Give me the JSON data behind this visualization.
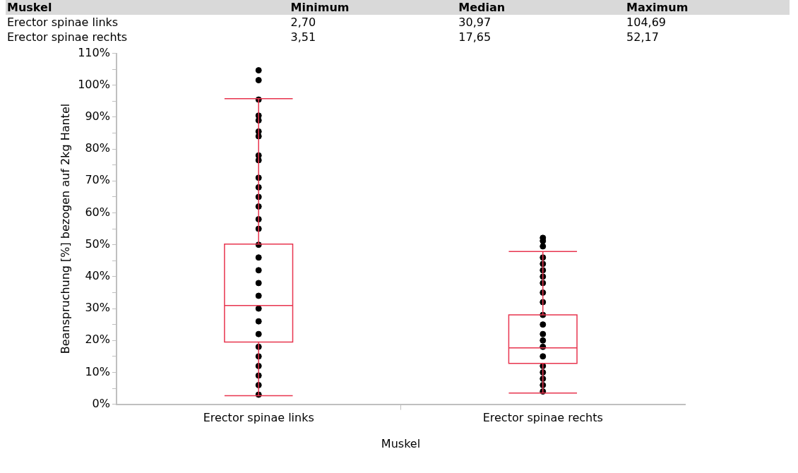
{
  "chart_data": {
    "type": "box",
    "xlabel": "Muskel",
    "ylabel": "Beanspruchung [%] bezogen auf 2kg Hantel",
    "categories": [
      "Erector spinae links",
      "Erector spinae rechts"
    ],
    "color": "#e8344e",
    "boxes": [
      {
        "low": 2.7,
        "q1": 19.5,
        "median": 30.97,
        "q3": 50.2,
        "high": 95.8,
        "outliers": [
          101.6,
          104.69
        ]
      },
      {
        "low": 3.51,
        "q1": 12.8,
        "median": 17.65,
        "q3": 28.0,
        "high": 47.9,
        "outliers": [
          49.5,
          51.2,
          52.17
        ]
      }
    ],
    "series": [
      {
        "type": "scatter",
        "color": "#000000",
        "x": [
          "Erector spinae links",
          "Erector spinae links",
          "Erector spinae links",
          "Erector spinae links",
          "Erector spinae links",
          "Erector spinae links",
          "Erector spinae links",
          "Erector spinae links",
          "Erector spinae links",
          "Erector spinae links",
          "Erector spinae links",
          "Erector spinae links",
          "Erector spinae links",
          "Erector spinae links",
          "Erector spinae links",
          "Erector spinae links",
          "Erector spinae links",
          "Erector spinae links",
          "Erector spinae links",
          "Erector spinae links",
          "Erector spinae links",
          "Erector spinae links",
          "Erector spinae links",
          "Erector spinae links",
          "Erector spinae links",
          "Erector spinae links",
          "Erector spinae links",
          "Erector spinae rechts",
          "Erector spinae rechts",
          "Erector spinae rechts",
          "Erector spinae rechts",
          "Erector spinae rechts",
          "Erector spinae rechts",
          "Erector spinae rechts",
          "Erector spinae rechts",
          "Erector spinae rechts",
          "Erector spinae rechts",
          "Erector spinae rechts",
          "Erector spinae rechts",
          "Erector spinae rechts",
          "Erector spinae rechts",
          "Erector spinae rechts",
          "Erector spinae rechts",
          "Erector spinae rechts",
          "Erector spinae rechts"
        ],
        "values": [
          95.5,
          90.5,
          89,
          85.5,
          84,
          78,
          76.5,
          71,
          68,
          65,
          62,
          58,
          55,
          50,
          46,
          42,
          38,
          34,
          30,
          26,
          22,
          18,
          15,
          12,
          9,
          6,
          3,
          46,
          44,
          42,
          40,
          38,
          35,
          32,
          28,
          25,
          22,
          20,
          18,
          15,
          12,
          10,
          8,
          6,
          4
        ]
      }
    ],
    "ylim": [
      0,
      110
    ],
    "yticks": [
      {
        "value": 0,
        "label": "0%"
      },
      {
        "value": 5,
        "label": null
      },
      {
        "value": 10,
        "label": "10%"
      },
      {
        "value": 15,
        "label": null
      },
      {
        "value": 20,
        "label": "20%"
      },
      {
        "value": 25,
        "label": null
      },
      {
        "value": 30,
        "label": "30%"
      },
      {
        "value": 35,
        "label": null
      },
      {
        "value": 40,
        "label": "40%"
      },
      {
        "value": 45,
        "label": null
      },
      {
        "value": 50,
        "label": "50%"
      },
      {
        "value": 55,
        "label": null
      },
      {
        "value": 60,
        "label": "60%"
      },
      {
        "value": 65,
        "label": null
      },
      {
        "value": 70,
        "label": "70%"
      },
      {
        "value": 75,
        "label": null
      },
      {
        "value": 80,
        "label": "80%"
      },
      {
        "value": 85,
        "label": null
      },
      {
        "value": 90,
        "label": "90%"
      },
      {
        "value": 95,
        "label": null
      },
      {
        "value": 100,
        "label": "100%"
      },
      {
        "value": 105,
        "label": null
      },
      {
        "value": 110,
        "label": "110%"
      }
    ],
    "grid": false,
    "marker": "circle",
    "annotations": [
      "Muskel",
      "Minimum",
      "Median",
      "Maximum",
      "Erector spinae links",
      "2,70",
      "30,97",
      "104,69",
      "Erector spinae rechts",
      "3,51",
      "17,65",
      "52,17"
    ]
  }
}
